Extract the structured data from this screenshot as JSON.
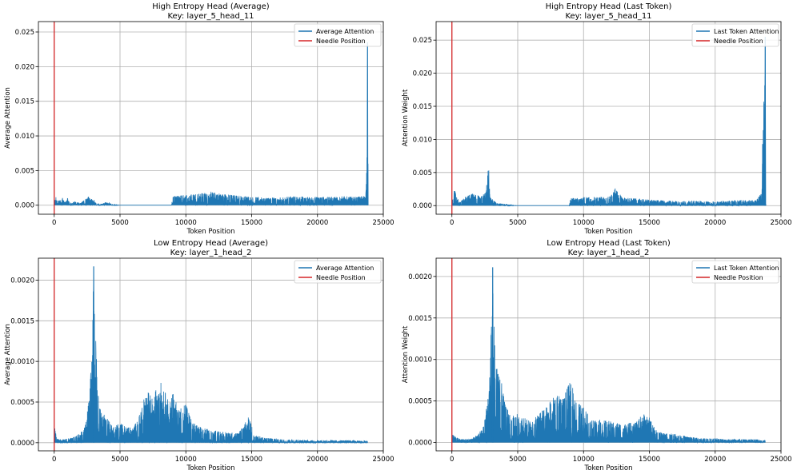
{
  "chart_data": [
    {
      "type": "line",
      "title": "High Entropy Head (Average)",
      "subtitle": "Key: layer_5_head_11",
      "xlabel": "Token Position",
      "ylabel": "Average Attention",
      "xlim": [
        -1200,
        25000
      ],
      "ylim": [
        -0.0013,
        0.0265
      ],
      "xticks": [
        0,
        5000,
        10000,
        15000,
        20000,
        25000
      ],
      "yticks": [
        0.0,
        0.005,
        0.01,
        0.015,
        0.02,
        0.025
      ],
      "ytick_labels": [
        "0.000",
        "0.005",
        "0.010",
        "0.015",
        "0.020",
        "0.025"
      ],
      "grid": true,
      "legend_position": "top-right",
      "needle_position": 0,
      "series": [
        {
          "name": "Average Attention",
          "color": "#1f77b4",
          "x": [
            0,
            120,
            250,
            400,
            600,
            800,
            1000,
            1200,
            1500,
            2000,
            2600,
            2800,
            3000,
            3200,
            3600,
            4000,
            4500,
            5000,
            6000,
            7000,
            8000,
            8900,
            9000,
            10000,
            11000,
            12000,
            13000,
            14000,
            15000,
            16000,
            17000,
            18000,
            19000,
            20000,
            21000,
            22000,
            23000,
            23500,
            23700,
            23800,
            23850
          ],
          "y": [
            0.0003,
            0.0013,
            0.0005,
            0.0008,
            0.0012,
            0.0004,
            0.0011,
            0.0002,
            0.0006,
            0.0003,
            0.0013,
            0.0009,
            0.0008,
            0.0003,
            0.0002,
            0.0005,
            0.0001,
            0.0,
            0.0,
            0.0,
            0.0,
            0.0,
            0.0013,
            0.0015,
            0.0017,
            0.0019,
            0.0016,
            0.0014,
            0.0012,
            0.0011,
            0.0011,
            0.0013,
            0.0012,
            0.0012,
            0.0012,
            0.0013,
            0.0012,
            0.0014,
            0.0025,
            0.0235,
            0.0005
          ]
        },
        {
          "name": "Needle Position",
          "color": "#d62728",
          "x": [
            0
          ],
          "y": [
            null
          ]
        }
      ]
    },
    {
      "type": "line",
      "title": "High Entropy Head (Last Token)",
      "subtitle": "Key: layer_5_head_11",
      "xlabel": "Token Position",
      "ylabel": "Attention Weight",
      "xlim": [
        -1200,
        25000
      ],
      "ylim": [
        -0.0013,
        0.0278
      ],
      "xticks": [
        0,
        5000,
        10000,
        15000,
        20000,
        25000
      ],
      "yticks": [
        0.0,
        0.005,
        0.01,
        0.015,
        0.02,
        0.025
      ],
      "ytick_labels": [
        "0.000",
        "0.005",
        "0.010",
        "0.015",
        "0.020",
        "0.025"
      ],
      "grid": true,
      "legend_position": "top-right",
      "needle_position": 0,
      "series": [
        {
          "name": "Last Token Attention",
          "color": "#1f77b4",
          "x": [
            0,
            200,
            400,
            600,
            1000,
            1600,
            2200,
            2600,
            2800,
            2900,
            3100,
            3500,
            4000,
            5000,
            7000,
            8900,
            9000,
            10000,
            11000,
            12000,
            12400,
            13000,
            14000,
            15000,
            16000,
            17000,
            18000,
            20000,
            22000,
            23000,
            23500,
            23800,
            23850
          ],
          "y": [
            0.0004,
            0.0027,
            0.0012,
            0.0005,
            0.0013,
            0.0019,
            0.0014,
            0.0022,
            0.0066,
            0.0013,
            0.0009,
            0.0004,
            0.0002,
            0.0,
            0.0,
            0.0,
            0.0011,
            0.0013,
            0.0013,
            0.0014,
            0.0026,
            0.0012,
            0.0011,
            0.0009,
            0.0008,
            0.0007,
            0.0007,
            0.0006,
            0.0009,
            0.0008,
            0.0018,
            0.0255,
            0.0003
          ]
        },
        {
          "name": "Needle Position",
          "color": "#d62728",
          "x": [
            0
          ],
          "y": [
            null
          ]
        }
      ]
    },
    {
      "type": "line",
      "title": "Low Entropy Head (Average)",
      "subtitle": "Key: layer_1_head_2",
      "xlabel": "Token Position",
      "ylabel": "Average Attention",
      "xlim": [
        -1200,
        25000
      ],
      "ylim": [
        -0.0001,
        0.00227
      ],
      "xticks": [
        0,
        5000,
        10000,
        15000,
        20000,
        25000
      ],
      "yticks": [
        0.0,
        0.0005,
        0.001,
        0.0015,
        0.002
      ],
      "ytick_labels": [
        "0.0000",
        "0.0005",
        "0.0010",
        "0.0015",
        "0.0020"
      ],
      "grid": true,
      "legend_position": "top-right",
      "needle_position": 0,
      "series": [
        {
          "name": "Average Attention",
          "color": "#1f77b4",
          "x": [
            0,
            50,
            200,
            500,
            1000,
            1500,
            2000,
            2400,
            2700,
            2900,
            3000,
            3100,
            3200,
            3300,
            3600,
            4000,
            4500,
            5000,
            5500,
            6000,
            6500,
            7000,
            7500,
            8000,
            8500,
            9000,
            9500,
            9900,
            10500,
            11000,
            12000,
            13000,
            14000,
            14800,
            15200,
            16000,
            17000,
            18000,
            19000,
            20000,
            21000,
            22000,
            23000,
            23800
          ],
          "y": [
            3e-05,
            0.00018,
            5e-05,
            4e-05,
            5e-05,
            7e-05,
            0.00012,
            0.00025,
            0.0006,
            0.00143,
            0.00217,
            0.00153,
            0.0011,
            0.0007,
            0.0004,
            0.0003,
            0.00022,
            0.00024,
            0.0002,
            0.00018,
            0.00035,
            0.00065,
            0.00055,
            0.00078,
            0.0006,
            0.00062,
            0.0004,
            0.00053,
            0.00025,
            0.0002,
            0.00015,
            0.00013,
            0.00012,
            0.00033,
            0.0001,
            6e-05,
            5e-05,
            4e-05,
            3e-05,
            3e-05,
            3e-05,
            3e-05,
            3e-05,
            2e-05
          ]
        },
        {
          "name": "Needle Position",
          "color": "#d62728",
          "x": [
            0
          ],
          "y": [
            null
          ]
        }
      ]
    },
    {
      "type": "line",
      "title": "Low Entropy Head (Last Token)",
      "subtitle": "Key: layer_1_head_2",
      "xlabel": "Token Position",
      "ylabel": "Attention Weight",
      "xlim": [
        -1200,
        25000
      ],
      "ylim": [
        -0.0001,
        0.00222
      ],
      "xticks": [
        0,
        5000,
        10000,
        15000,
        20000,
        25000
      ],
      "yticks": [
        0.0,
        0.0005,
        0.001,
        0.0015,
        0.002
      ],
      "ytick_labels": [
        "0.0000",
        "0.0005",
        "0.0010",
        "0.0015",
        "0.0020"
      ],
      "grid": true,
      "legend_position": "top-right",
      "needle_position": 0,
      "series": [
        {
          "name": "Last Token Attention",
          "color": "#1f77b4",
          "x": [
            0,
            50,
            200,
            500,
            1000,
            1500,
            2000,
            2400,
            2700,
            2900,
            3000,
            3100,
            3200,
            3400,
            3700,
            4000,
            4500,
            5000,
            5500,
            6000,
            6500,
            7000,
            7500,
            8000,
            8500,
            9000,
            9500,
            10000,
            10500,
            11000,
            12000,
            13000,
            14000,
            14500,
            15000,
            15500,
            16000,
            17000,
            18000,
            19000,
            20000,
            21000,
            22000,
            23000,
            23800
          ],
          "y": [
            3e-05,
            0.0001,
            8e-05,
            5e-05,
            4e-05,
            5e-05,
            0.0001,
            0.0002,
            0.0005,
            0.0009,
            0.00157,
            0.00211,
            0.0014,
            0.0009,
            0.0008,
            0.0005,
            0.0003,
            0.00035,
            0.0003,
            0.00025,
            0.00035,
            0.0004,
            0.0005,
            0.0006,
            0.00055,
            0.00075,
            0.0005,
            0.00043,
            0.0003,
            0.00028,
            0.00026,
            0.00022,
            0.00025,
            0.00035,
            0.0003,
            0.00015,
            0.00012,
            0.0001,
            7e-05,
            5e-05,
            5e-05,
            4e-05,
            4e-05,
            4e-05,
            3e-05
          ]
        },
        {
          "name": "Needle Position",
          "color": "#d62728",
          "x": [
            0
          ],
          "y": [
            null
          ]
        }
      ]
    }
  ]
}
